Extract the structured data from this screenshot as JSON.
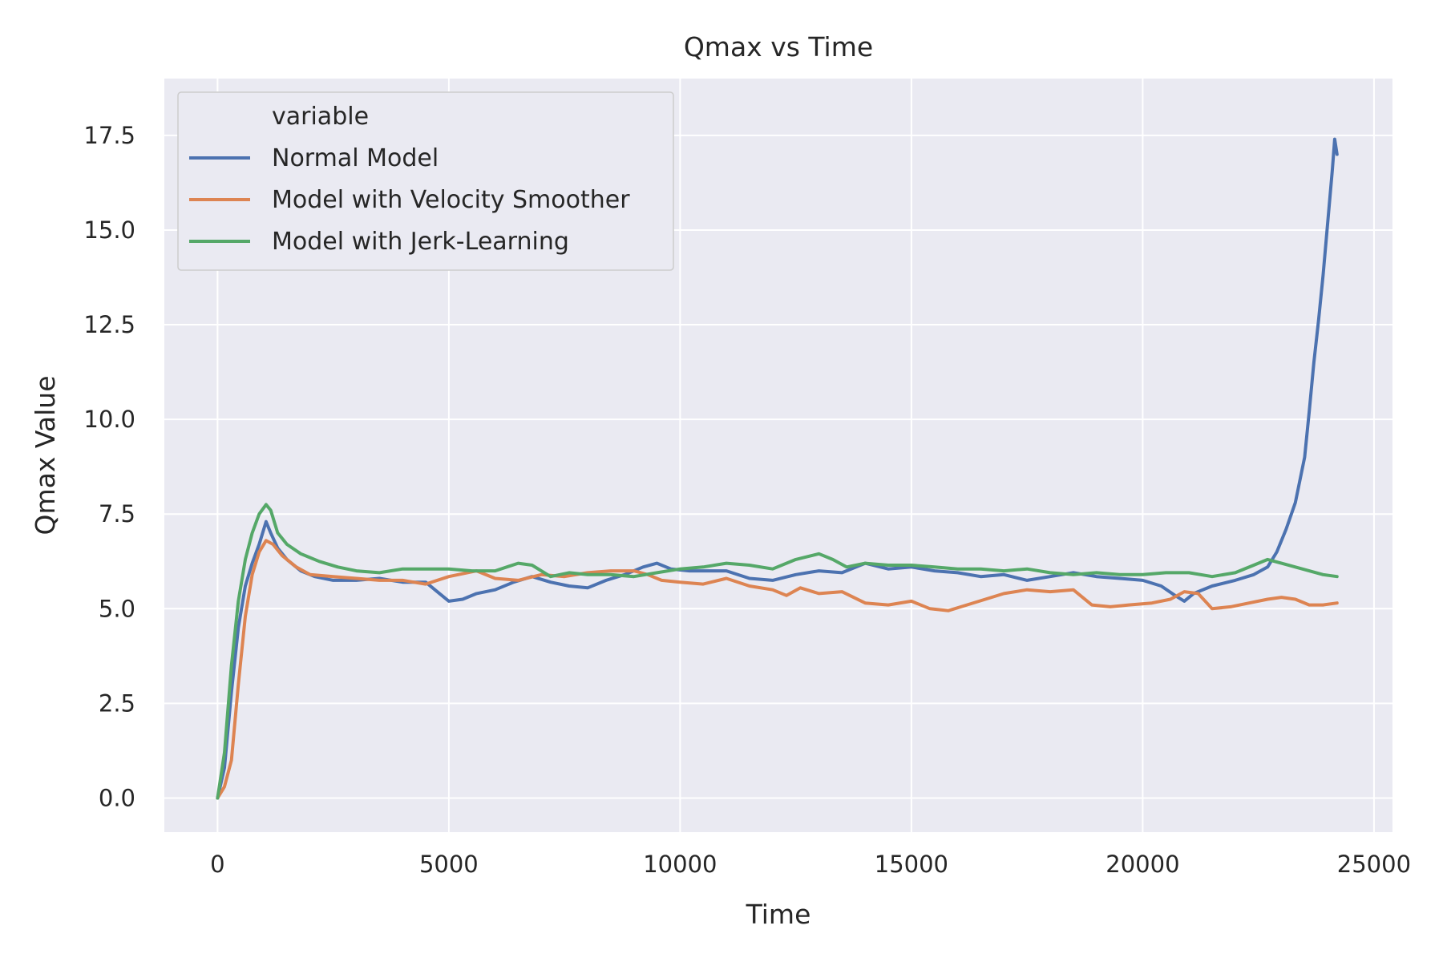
{
  "chart_data": {
    "type": "line",
    "title": "Qmax vs Time",
    "xlabel": "Time",
    "ylabel": "Qmax Value",
    "xlim": [
      -1150,
      25400
    ],
    "ylim": [
      -0.9,
      19.0
    ],
    "xticks": [
      0,
      5000,
      10000,
      15000,
      20000,
      25000
    ],
    "xtick_labels": [
      "0",
      "5000",
      "10000",
      "15000",
      "20000",
      "25000"
    ],
    "yticks": [
      0.0,
      2.5,
      5.0,
      7.5,
      10.0,
      12.5,
      15.0,
      17.5
    ],
    "ytick_labels": [
      "0.0",
      "2.5",
      "5.0",
      "7.5",
      "10.0",
      "12.5",
      "15.0",
      "17.5"
    ],
    "grid": true,
    "legend": {
      "title": "variable",
      "placement": "top-left"
    },
    "series": [
      {
        "name": "Normal Model",
        "color": "#4c72b0",
        "x": [
          0,
          150,
          300,
          450,
          600,
          750,
          900,
          1050,
          1150,
          1300,
          1500,
          1800,
          2100,
          2500,
          3000,
          3500,
          4000,
          4500,
          4800,
          5000,
          5300,
          5600,
          6000,
          6400,
          6800,
          7200,
          7600,
          8000,
          8400,
          8800,
          9200,
          9500,
          9800,
          10200,
          10600,
          11000,
          11500,
          12000,
          12500,
          13000,
          13500,
          14000,
          14500,
          15000,
          15500,
          16000,
          16500,
          17000,
          17500,
          18000,
          18500,
          19000,
          19500,
          20000,
          20400,
          20700,
          20900,
          21100,
          21500,
          22000,
          22400,
          22700,
          22900,
          23100,
          23300,
          23500,
          23600,
          23700,
          23800,
          23900,
          24000,
          24100,
          24150,
          24200
        ],
        "y": [
          0.0,
          0.8,
          2.8,
          4.5,
          5.6,
          6.2,
          6.7,
          7.3,
          7.0,
          6.6,
          6.3,
          6.0,
          5.85,
          5.75,
          5.75,
          5.8,
          5.7,
          5.7,
          5.4,
          5.2,
          5.25,
          5.4,
          5.5,
          5.7,
          5.85,
          5.7,
          5.6,
          5.55,
          5.75,
          5.9,
          6.1,
          6.2,
          6.05,
          6.0,
          6.0,
          6.0,
          5.8,
          5.75,
          5.9,
          6.0,
          5.95,
          6.2,
          6.05,
          6.1,
          6.0,
          5.95,
          5.85,
          5.9,
          5.75,
          5.85,
          5.95,
          5.85,
          5.8,
          5.75,
          5.6,
          5.35,
          5.2,
          5.4,
          5.6,
          5.75,
          5.9,
          6.1,
          6.5,
          7.1,
          7.8,
          9.0,
          10.2,
          11.5,
          12.6,
          13.8,
          15.2,
          16.6,
          17.4,
          17.0
        ]
      },
      {
        "name": "Model with Velocity Smoother",
        "color": "#dd8452",
        "x": [
          0,
          150,
          300,
          450,
          600,
          750,
          900,
          1050,
          1200,
          1400,
          1700,
          2000,
          2500,
          3000,
          3500,
          4000,
          4500,
          5000,
          5400,
          5600,
          6000,
          6500,
          7000,
          7500,
          8000,
          8500,
          9000,
          9300,
          9600,
          10000,
          10500,
          11000,
          11500,
          12000,
          12300,
          12600,
          13000,
          13500,
          14000,
          14500,
          15000,
          15400,
          15800,
          16200,
          16600,
          17000,
          17500,
          18000,
          18500,
          18900,
          19300,
          19700,
          20200,
          20600,
          20900,
          21200,
          21500,
          21900,
          22300,
          22700,
          23000,
          23300,
          23600,
          23900,
          24200
        ],
        "y": [
          0.0,
          0.3,
          1.0,
          3.0,
          4.8,
          5.9,
          6.5,
          6.8,
          6.7,
          6.4,
          6.1,
          5.9,
          5.85,
          5.8,
          5.75,
          5.75,
          5.65,
          5.85,
          5.95,
          6.0,
          5.8,
          5.75,
          5.9,
          5.85,
          5.95,
          6.0,
          6.0,
          5.9,
          5.75,
          5.7,
          5.65,
          5.8,
          5.6,
          5.5,
          5.35,
          5.55,
          5.4,
          5.45,
          5.15,
          5.1,
          5.2,
          5.0,
          4.95,
          5.1,
          5.25,
          5.4,
          5.5,
          5.45,
          5.5,
          5.1,
          5.05,
          5.1,
          5.15,
          5.25,
          5.45,
          5.4,
          5.0,
          5.05,
          5.15,
          5.25,
          5.3,
          5.25,
          5.1,
          5.1,
          5.15
        ]
      },
      {
        "name": "Model with Jerk-Learning",
        "color": "#55a868",
        "x": [
          0,
          150,
          300,
          450,
          600,
          750,
          900,
          1050,
          1150,
          1300,
          1500,
          1800,
          2200,
          2600,
          3000,
          3500,
          4000,
          4500,
          5000,
          5500,
          6000,
          6500,
          6800,
          7200,
          7600,
          8000,
          8500,
          9000,
          9500,
          10000,
          10500,
          11000,
          11500,
          12000,
          12500,
          13000,
          13300,
          13600,
          14000,
          14500,
          15000,
          15500,
          16000,
          16500,
          17000,
          17500,
          18000,
          18500,
          19000,
          19500,
          20000,
          20500,
          21000,
          21500,
          22000,
          22400,
          22700,
          23000,
          23300,
          23600,
          23900,
          24200
        ],
        "y": [
          0.0,
          1.2,
          3.5,
          5.2,
          6.3,
          7.0,
          7.5,
          7.75,
          7.6,
          7.0,
          6.7,
          6.45,
          6.25,
          6.1,
          6.0,
          5.95,
          6.05,
          6.05,
          6.05,
          6.0,
          6.0,
          6.2,
          6.15,
          5.85,
          5.95,
          5.9,
          5.9,
          5.85,
          5.95,
          6.05,
          6.1,
          6.2,
          6.15,
          6.05,
          6.3,
          6.45,
          6.3,
          6.1,
          6.2,
          6.15,
          6.15,
          6.1,
          6.05,
          6.05,
          6.0,
          6.05,
          5.95,
          5.9,
          5.95,
          5.9,
          5.9,
          5.95,
          5.95,
          5.85,
          5.95,
          6.15,
          6.3,
          6.2,
          6.1,
          6.0,
          5.9,
          5.85
        ]
      }
    ]
  }
}
